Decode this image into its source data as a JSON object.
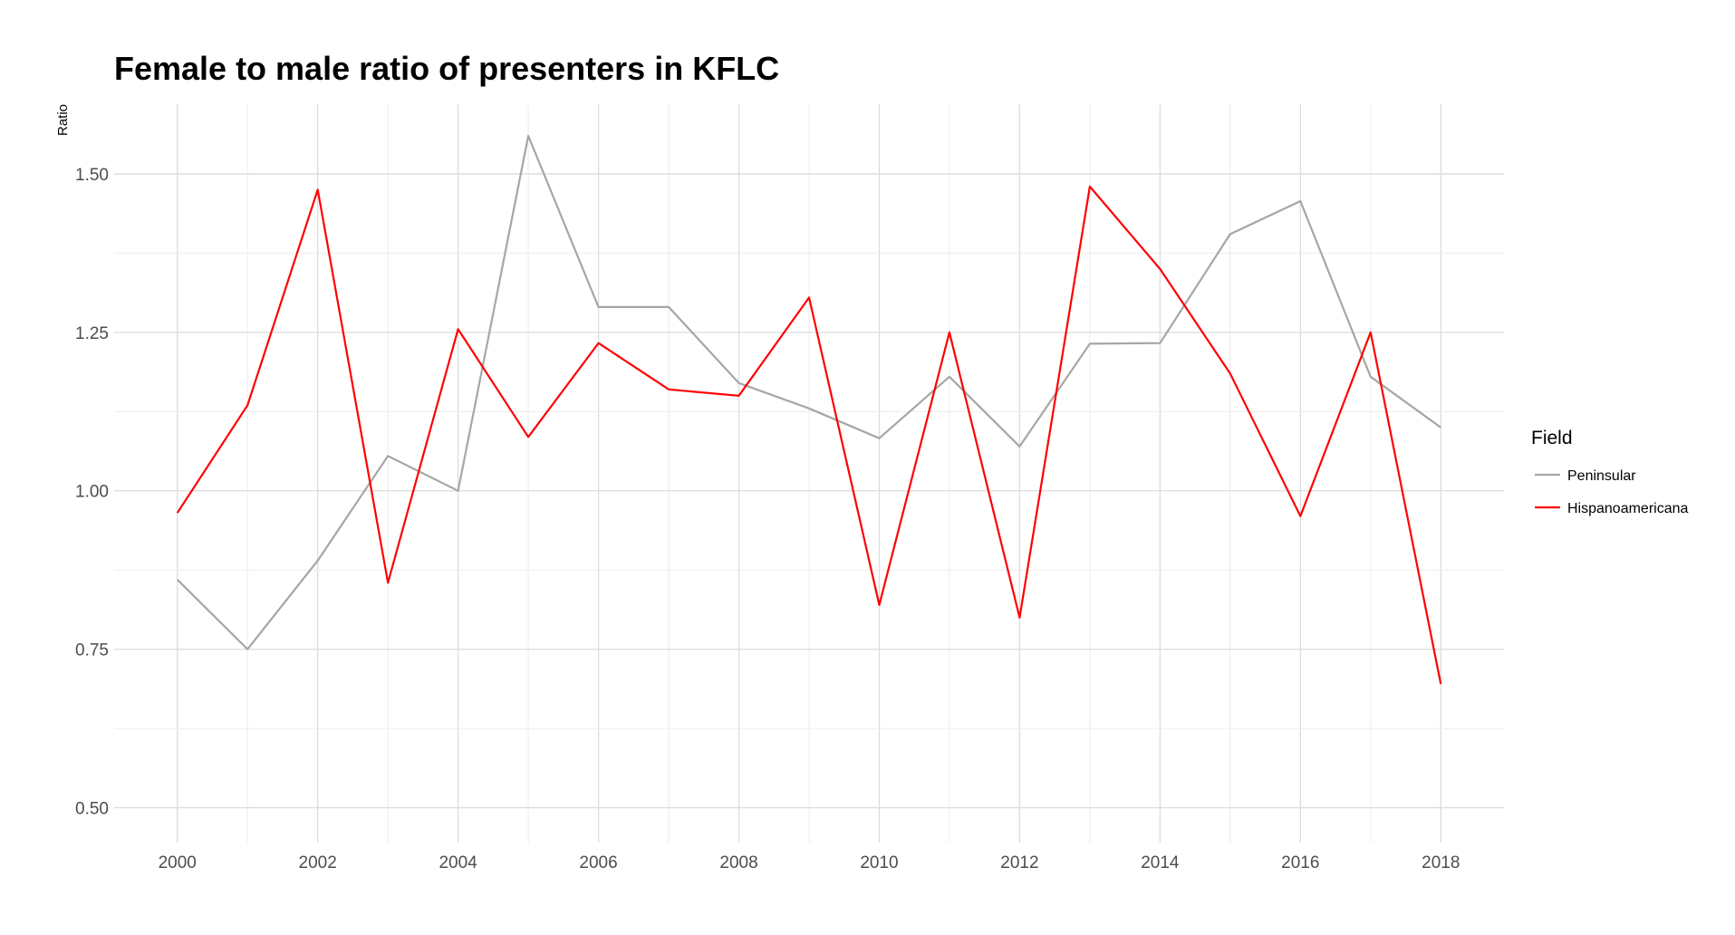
{
  "chart_data": {
    "type": "line",
    "title": "Female to male ratio of presenters in KFLC",
    "ylabel": "Ratio",
    "xlabel": "",
    "x": [
      2000,
      2001,
      2002,
      2003,
      2004,
      2005,
      2006,
      2007,
      2008,
      2009,
      2010,
      2011,
      2012,
      2013,
      2014,
      2015,
      2016,
      2017,
      2018
    ],
    "x_ticks": [
      "2000",
      "2002",
      "2004",
      "2006",
      "2008",
      "2010",
      "2012",
      "2014",
      "2016",
      "2018"
    ],
    "xlim": [
      1999.1,
      2018.9
    ],
    "ylim": [
      0.445,
      1.61
    ],
    "y_ticks": [
      "0.50",
      "0.75",
      "1.00",
      "1.25",
      "1.50"
    ],
    "grid": true,
    "legend": {
      "title": "Field",
      "placement": "right"
    },
    "series": [
      {
        "name": "Peninsular",
        "color": "#a6a6a6",
        "values": [
          0.86,
          0.75,
          0.89,
          1.055,
          1.0,
          1.56,
          1.29,
          1.29,
          1.17,
          1.13,
          1.083,
          1.18,
          1.07,
          1.232,
          1.233,
          1.405,
          1.457,
          1.18,
          1.1
        ]
      },
      {
        "name": "Hispanoamericana",
        "color": "#ff0000",
        "values": [
          0.965,
          1.135,
          1.475,
          0.855,
          1.255,
          1.085,
          1.233,
          1.16,
          1.15,
          1.305,
          0.82,
          1.25,
          0.8,
          1.48,
          1.35,
          1.185,
          0.96,
          1.25,
          0.695
        ]
      }
    ]
  }
}
